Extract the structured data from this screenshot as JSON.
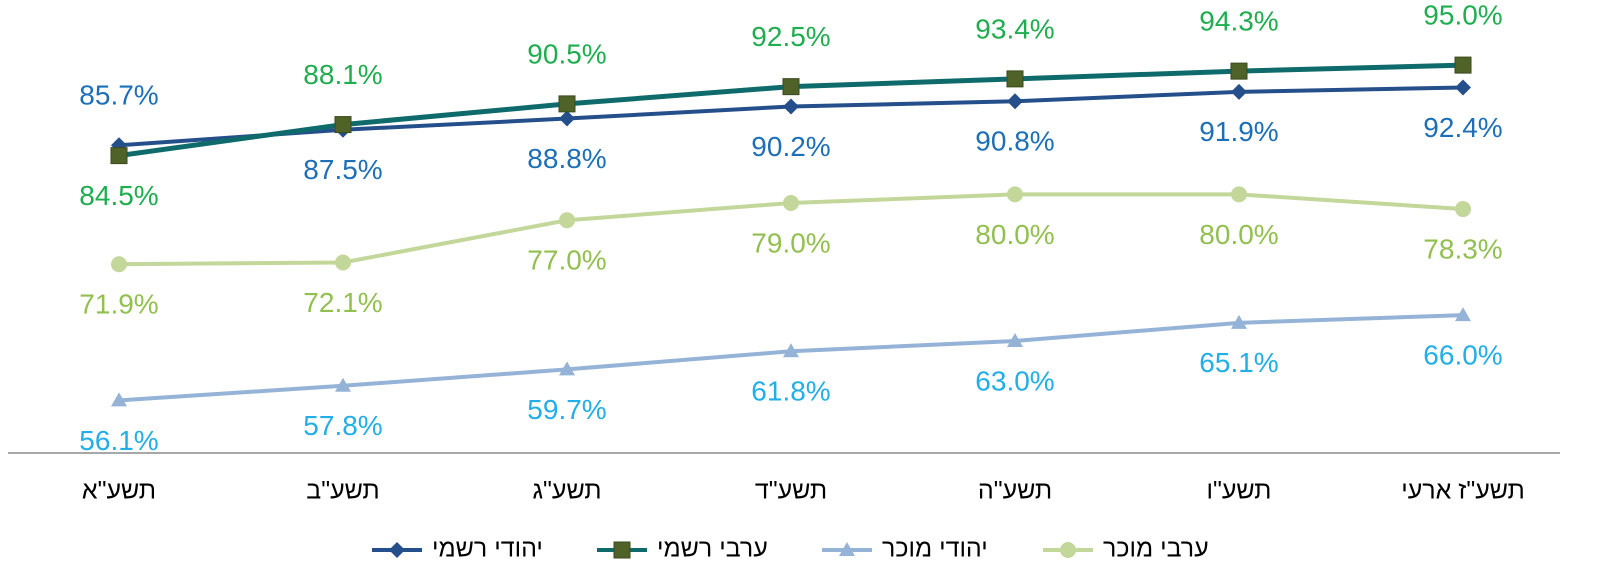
{
  "chart_data": {
    "type": "line",
    "categories": [
      "תשע\"א",
      "תשע\"ב",
      "תשע\"ג",
      "תשע\"ד",
      "תשע\"ה",
      "תשע\"ו",
      "תשע\"ז ארעי"
    ],
    "series": [
      {
        "name": "יהודי רשמי",
        "color": "#254f8a",
        "label_color": "#1d6fb8",
        "marker": "diamond",
        "marker_color": "#254f8a",
        "values": [
          85.7,
          87.5,
          88.8,
          90.2,
          90.8,
          91.9,
          92.4
        ],
        "value_labels": [
          "85.7%",
          "87.5%",
          "88.8%",
          "90.2%",
          "90.8%",
          "91.9%",
          "92.4%"
        ]
      },
      {
        "name": "ערבי רשמי",
        "color": "#0f6b6b",
        "label_color": "#1fae4f",
        "marker": "square",
        "marker_color": "#4f6228",
        "values": [
          84.5,
          88.1,
          90.5,
          92.5,
          93.4,
          94.3,
          95.0
        ],
        "value_labels": [
          "84.5%",
          "88.1%",
          "90.5%",
          "92.5%",
          "93.4%",
          "94.3%",
          "95.0%"
        ]
      },
      {
        "name": "יהודי מוכר",
        "color": "#95b3d7",
        "label_color": "#22aee6",
        "marker": "triangle",
        "marker_color": "#95b3d7",
        "values": [
          56.1,
          57.8,
          59.7,
          61.8,
          63.0,
          65.1,
          66.0
        ],
        "value_labels": [
          "56.1%",
          "57.8%",
          "59.7%",
          "61.8%",
          "63.0%",
          "65.1%",
          "66.0%"
        ]
      },
      {
        "name": "ערבי מוכר",
        "color": "#c4d79b",
        "label_color": "#92c050",
        "marker": "circle",
        "marker_color": "#c4d79b",
        "values": [
          71.9,
          72.1,
          77.0,
          79.0,
          80.0,
          80.0,
          78.3
        ],
        "value_labels": [
          "71.9%",
          "72.1%",
          "77.0%",
          "79.0%",
          "80.0%",
          "80.0%",
          "78.3%"
        ]
      }
    ],
    "ylim": [
      50,
      100
    ],
    "legend": "bottom"
  }
}
